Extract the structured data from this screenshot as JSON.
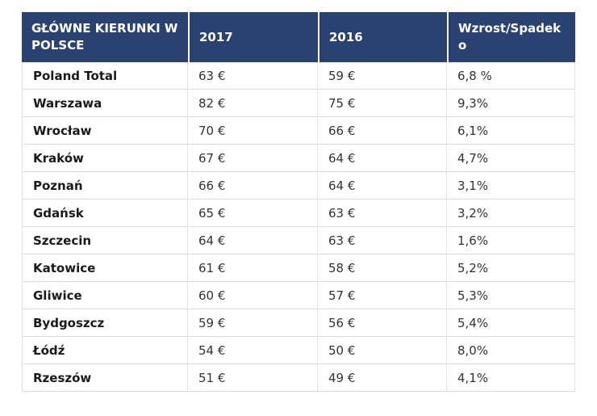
{
  "chart_data": {
    "type": "table",
    "title": "GŁÓWNE KIERUNKI W POLSCE",
    "columns": [
      "GŁÓWNE KIERUNKI W\n POLSCE",
      "2017",
      "2016",
      "Wzrost/Spadek o"
    ],
    "rows": [
      {
        "city": "Poland Total",
        "y2017": "63 €",
        "y2016": "59 €",
        "change": "6,8 %"
      },
      {
        "city": "Warszawa",
        "y2017": "82 €",
        "y2016": "75 €",
        "change": "9,3%"
      },
      {
        "city": "Wrocław",
        "y2017": "70 €",
        "y2016": "66 €",
        "change": "6,1%"
      },
      {
        "city": "Kraków",
        "y2017": "67 €",
        "y2016": "64 €",
        "change": "4,7%"
      },
      {
        "city": "Poznań",
        "y2017": "66 €",
        "y2016": "64 €",
        "change": "3,1%"
      },
      {
        "city": "Gdańsk",
        "y2017": "65 €",
        "y2016": "63 €",
        "change": "3,2%"
      },
      {
        "city": "Szczecin",
        "y2017": "64 €",
        "y2016": "63 €",
        "change": "1,6%"
      },
      {
        "city": "Katowice",
        "y2017": "61 €",
        "y2016": "58 €",
        "change": "5,2%"
      },
      {
        "city": "Gliwice",
        "y2017": "60 €",
        "y2016": "57 €",
        "change": "5,3%"
      },
      {
        "city": "Bydgoszcz",
        "y2017": "59 €",
        "y2016": "56 €",
        "change": "5,4%"
      },
      {
        "city": "Łódź",
        "y2017": "54 €",
        "y2016": "50 €",
        "change": "8,0%"
      },
      {
        "city": "Rzeszów",
        "y2017": "51 €",
        "y2016": "49 €",
        "change": "4,1%"
      }
    ],
    "colors": {
      "header_background": "#2a4270",
      "header_text": "#ffffff",
      "body_text": "#333333",
      "city_text": "#1a1a1a",
      "border": "#dcdcdc"
    },
    "currency_unit": "€",
    "layout": {
      "grid": true,
      "legend": "none"
    }
  }
}
